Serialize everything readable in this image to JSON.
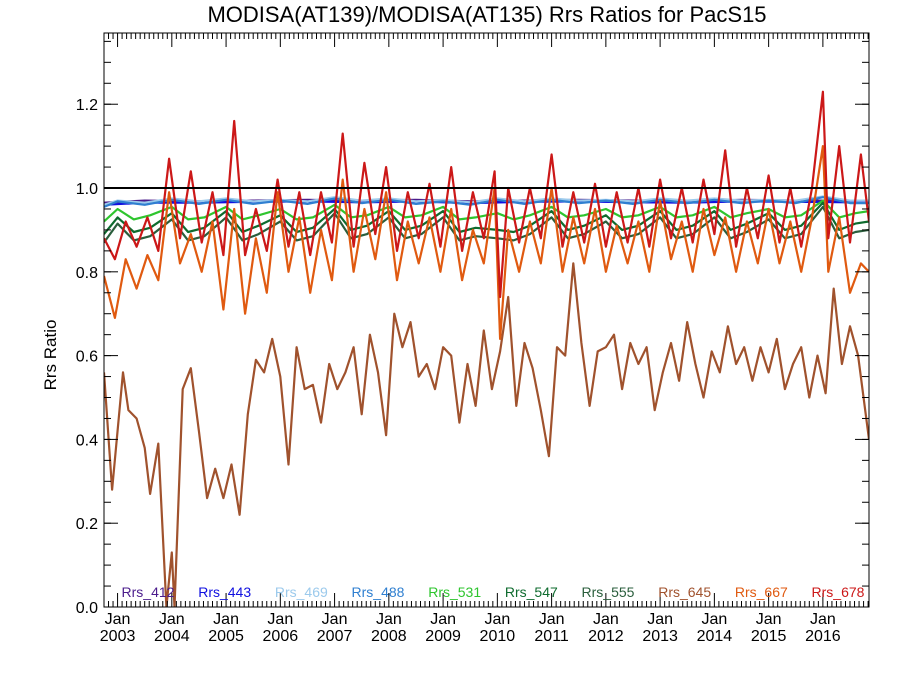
{
  "chart_data": {
    "type": "line",
    "title": "MODISA(AT139)/MODISA(AT135)  Rrs Ratios for PacS15",
    "xlabel": "",
    "ylabel": "Rrs Ratio",
    "xlim": [
      2002.75,
      2016.85
    ],
    "ylim": [
      0.0,
      1.37
    ],
    "yticks": [
      0.0,
      0.2,
      0.4,
      0.6,
      0.8,
      1.0,
      1.2
    ],
    "ytick_labels": [
      "0.0",
      "0.2",
      "0.4",
      "0.6",
      "0.8",
      "1.0",
      "1.2"
    ],
    "xticks": [
      {
        "value": 2003,
        "line1": "Jan",
        "line2": "2003"
      },
      {
        "value": 2004,
        "line1": "Jan",
        "line2": "2004"
      },
      {
        "value": 2005,
        "line1": "Jan",
        "line2": "2005"
      },
      {
        "value": 2006,
        "line1": "Jan",
        "line2": "2006"
      },
      {
        "value": 2007,
        "line1": "Jan",
        "line2": "2007"
      },
      {
        "value": 2008,
        "line1": "Jan",
        "line2": "2008"
      },
      {
        "value": 2009,
        "line1": "Jan",
        "line2": "2009"
      },
      {
        "value": 2010,
        "line1": "Jan",
        "line2": "2010"
      },
      {
        "value": 2011,
        "line1": "Jan",
        "line2": "2011"
      },
      {
        "value": 2012,
        "line1": "Jan",
        "line2": "2012"
      },
      {
        "value": 2013,
        "line1": "Jan",
        "line2": "2013"
      },
      {
        "value": 2014,
        "line1": "Jan",
        "line2": "2014"
      },
      {
        "value": 2015,
        "line1": "Jan",
        "line2": "2015"
      },
      {
        "value": 2016,
        "line1": "Jan",
        "line2": "2016"
      }
    ],
    "reference_line": 1.0,
    "legend_position": "bottom",
    "series": [
      {
        "name": "Rrs_412",
        "color": "#4b1c8c",
        "x": [
          2002.75,
          2003.5,
          2004.5,
          2005.5,
          2006.5,
          2007.5,
          2008.5,
          2009.5,
          2010.5,
          2011.5,
          2012.5,
          2013.5,
          2014.5,
          2015.5,
          2016.5,
          2016.85
        ],
        "y": [
          0.965,
          0.97,
          0.968,
          0.97,
          0.972,
          0.97,
          0.972,
          0.968,
          0.97,
          0.972,
          0.97,
          0.968,
          0.972,
          0.97,
          0.97,
          0.97
        ]
      },
      {
        "name": "Rrs_443",
        "color": "#1010e0",
        "x": [
          2002.75,
          2003.5,
          2004.5,
          2005.5,
          2006.5,
          2007.5,
          2008.5,
          2009.5,
          2010.5,
          2011.5,
          2012.5,
          2013.5,
          2014.5,
          2015.5,
          2016.5,
          2016.85
        ],
        "y": [
          0.96,
          0.965,
          0.965,
          0.967,
          0.968,
          0.966,
          0.968,
          0.964,
          0.967,
          0.968,
          0.966,
          0.965,
          0.968,
          0.967,
          0.966,
          0.966
        ]
      },
      {
        "name": "Rrs_469",
        "color": "#9ccaec",
        "x": [
          2002.75,
          2003.0,
          2003.5,
          2004.0,
          2004.5,
          2005.0,
          2005.5,
          2006.0,
          2006.5,
          2007.0,
          2007.5,
          2008.0,
          2008.5,
          2009.0,
          2009.5,
          2010.0,
          2010.5,
          2011.0,
          2011.5,
          2012.0,
          2012.5,
          2013.0,
          2013.5,
          2014.0,
          2014.5,
          2015.0,
          2015.5,
          2016.0,
          2016.5,
          2016.85
        ],
        "y": [
          0.96,
          0.97,
          0.965,
          0.975,
          0.968,
          0.975,
          0.968,
          0.972,
          0.968,
          0.978,
          0.97,
          0.975,
          0.968,
          0.972,
          0.966,
          0.975,
          0.968,
          0.975,
          0.97,
          0.972,
          0.968,
          0.975,
          0.97,
          0.975,
          0.97,
          0.972,
          0.97,
          0.98,
          0.97,
          0.97
        ]
      },
      {
        "name": "Rrs_488",
        "color": "#2f7fd0",
        "x": [
          2002.75,
          2003.0,
          2003.5,
          2004.0,
          2004.5,
          2005.0,
          2005.5,
          2006.0,
          2006.5,
          2007.0,
          2007.5,
          2008.0,
          2008.5,
          2009.0,
          2009.5,
          2010.0,
          2010.5,
          2011.0,
          2011.5,
          2012.0,
          2012.5,
          2013.0,
          2013.5,
          2014.0,
          2014.5,
          2015.0,
          2015.5,
          2016.0,
          2016.5,
          2016.85
        ],
        "y": [
          0.955,
          0.968,
          0.96,
          0.972,
          0.962,
          0.972,
          0.962,
          0.97,
          0.962,
          0.975,
          0.964,
          0.972,
          0.962,
          0.968,
          0.96,
          0.972,
          0.962,
          0.972,
          0.964,
          0.97,
          0.962,
          0.972,
          0.964,
          0.972,
          0.964,
          0.97,
          0.964,
          0.978,
          0.964,
          0.964
        ]
      },
      {
        "name": "Rrs_531",
        "color": "#2ec52e",
        "x": [
          2002.75,
          2003.0,
          2003.3,
          2003.6,
          2004.0,
          2004.3,
          2004.6,
          2005.0,
          2005.3,
          2005.6,
          2006.0,
          2006.3,
          2006.6,
          2007.0,
          2007.3,
          2007.6,
          2008.0,
          2008.3,
          2008.6,
          2009.0,
          2009.3,
          2009.6,
          2010.0,
          2010.3,
          2010.6,
          2011.0,
          2011.3,
          2011.6,
          2012.0,
          2012.3,
          2012.6,
          2013.0,
          2013.3,
          2013.6,
          2014.0,
          2014.3,
          2014.6,
          2015.0,
          2015.3,
          2015.6,
          2016.0,
          2016.3,
          2016.6,
          2016.85
        ],
        "y": [
          0.92,
          0.95,
          0.925,
          0.935,
          0.955,
          0.925,
          0.93,
          0.955,
          0.925,
          0.935,
          0.95,
          0.925,
          0.93,
          0.96,
          0.93,
          0.935,
          0.955,
          0.93,
          0.935,
          0.955,
          0.925,
          0.93,
          0.94,
          0.925,
          0.935,
          0.955,
          0.93,
          0.935,
          0.95,
          0.93,
          0.935,
          0.955,
          0.93,
          0.935,
          0.955,
          0.93,
          0.94,
          0.95,
          0.93,
          0.935,
          0.97,
          0.93,
          0.94,
          0.945
        ]
      },
      {
        "name": "Rrs_547",
        "color": "#0e6b2e",
        "x": [
          2002.75,
          2003.0,
          2003.3,
          2003.6,
          2004.0,
          2004.3,
          2004.6,
          2005.0,
          2005.3,
          2005.6,
          2006.0,
          2006.3,
          2006.6,
          2007.0,
          2007.3,
          2007.6,
          2008.0,
          2008.3,
          2008.6,
          2009.0,
          2009.3,
          2009.6,
          2010.0,
          2010.3,
          2010.6,
          2011.0,
          2011.3,
          2011.6,
          2012.0,
          2012.3,
          2012.6,
          2013.0,
          2013.3,
          2013.6,
          2014.0,
          2014.3,
          2014.6,
          2015.0,
          2015.3,
          2015.6,
          2016.0,
          2016.3,
          2016.6,
          2016.85
        ],
        "y": [
          0.89,
          0.93,
          0.895,
          0.905,
          0.94,
          0.895,
          0.905,
          0.945,
          0.895,
          0.91,
          0.935,
          0.895,
          0.905,
          0.95,
          0.9,
          0.91,
          0.945,
          0.9,
          0.91,
          0.945,
          0.895,
          0.905,
          0.9,
          0.895,
          0.91,
          0.945,
          0.9,
          0.91,
          0.935,
          0.9,
          0.91,
          0.945,
          0.9,
          0.91,
          0.945,
          0.9,
          0.915,
          0.94,
          0.9,
          0.91,
          0.965,
          0.9,
          0.915,
          0.92
        ]
      },
      {
        "name": "Rrs_555",
        "color": "#2a5e3c",
        "x": [
          2002.75,
          2003.0,
          2003.3,
          2003.6,
          2004.0,
          2004.3,
          2004.6,
          2005.0,
          2005.3,
          2005.6,
          2006.0,
          2006.3,
          2006.6,
          2007.0,
          2007.3,
          2007.6,
          2008.0,
          2008.3,
          2008.6,
          2009.0,
          2009.3,
          2009.6,
          2010.0,
          2010.3,
          2010.6,
          2011.0,
          2011.3,
          2011.6,
          2012.0,
          2012.3,
          2012.6,
          2013.0,
          2013.3,
          2013.6,
          2014.0,
          2014.3,
          2014.6,
          2015.0,
          2015.3,
          2015.6,
          2016.0,
          2016.3,
          2016.6,
          2016.85
        ],
        "y": [
          0.87,
          0.915,
          0.875,
          0.885,
          0.925,
          0.875,
          0.885,
          0.93,
          0.875,
          0.89,
          0.92,
          0.875,
          0.885,
          0.94,
          0.88,
          0.89,
          0.93,
          0.88,
          0.89,
          0.93,
          0.875,
          0.885,
          0.88,
          0.875,
          0.89,
          0.93,
          0.88,
          0.89,
          0.92,
          0.88,
          0.89,
          0.93,
          0.88,
          0.89,
          0.93,
          0.88,
          0.895,
          0.925,
          0.88,
          0.89,
          0.955,
          0.88,
          0.895,
          0.9
        ]
      },
      {
        "name": "Rrs_645",
        "color": "#a0522d",
        "x": [
          2002.75,
          2002.9,
          2003.1,
          2003.2,
          2003.35,
          2003.5,
          2003.6,
          2003.75,
          2003.9,
          2004.0,
          2004.05,
          2004.2,
          2004.35,
          2004.5,
          2004.65,
          2004.8,
          2004.95,
          2005.1,
          2005.25,
          2005.4,
          2005.55,
          2005.7,
          2005.85,
          2006.0,
          2006.15,
          2006.3,
          2006.45,
          2006.6,
          2006.75,
          2006.9,
          2007.05,
          2007.2,
          2007.35,
          2007.5,
          2007.65,
          2007.8,
          2007.95,
          2008.1,
          2008.25,
          2008.4,
          2008.55,
          2008.7,
          2008.85,
          2009.0,
          2009.15,
          2009.3,
          2009.45,
          2009.6,
          2009.75,
          2009.9,
          2010.05,
          2010.2,
          2010.35,
          2010.5,
          2010.65,
          2010.8,
          2010.95,
          2011.1,
          2011.25,
          2011.4,
          2011.55,
          2011.7,
          2011.85,
          2012.0,
          2012.15,
          2012.3,
          2012.45,
          2012.6,
          2012.75,
          2012.9,
          2013.05,
          2013.2,
          2013.35,
          2013.5,
          2013.65,
          2013.8,
          2013.95,
          2014.1,
          2014.25,
          2014.4,
          2014.55,
          2014.7,
          2014.85,
          2015.0,
          2015.15,
          2015.3,
          2015.45,
          2015.6,
          2015.75,
          2015.9,
          2016.05,
          2016.2,
          2016.35,
          2016.5,
          2016.65,
          2016.85
        ],
        "y": [
          0.56,
          0.28,
          0.56,
          0.47,
          0.45,
          0.38,
          0.27,
          0.39,
          0.0,
          0.13,
          0.0,
          0.52,
          0.57,
          0.42,
          0.26,
          0.33,
          0.26,
          0.34,
          0.22,
          0.46,
          0.59,
          0.56,
          0.64,
          0.55,
          0.34,
          0.62,
          0.52,
          0.53,
          0.44,
          0.58,
          0.52,
          0.56,
          0.62,
          0.46,
          0.65,
          0.56,
          0.41,
          0.7,
          0.62,
          0.68,
          0.55,
          0.58,
          0.52,
          0.62,
          0.6,
          0.44,
          0.58,
          0.48,
          0.66,
          0.52,
          0.61,
          0.74,
          0.48,
          0.63,
          0.57,
          0.47,
          0.36,
          0.62,
          0.6,
          0.82,
          0.63,
          0.48,
          0.61,
          0.62,
          0.65,
          0.52,
          0.63,
          0.58,
          0.62,
          0.47,
          0.56,
          0.63,
          0.54,
          0.68,
          0.58,
          0.5,
          0.61,
          0.56,
          0.67,
          0.58,
          0.62,
          0.54,
          0.62,
          0.56,
          0.64,
          0.52,
          0.58,
          0.62,
          0.5,
          0.6,
          0.51,
          0.76,
          0.58,
          0.67,
          0.6,
          0.4
        ]
      },
      {
        "name": "Rrs_667",
        "color": "#e05a10",
        "x": [
          2002.75,
          2002.95,
          2003.15,
          2003.35,
          2003.55,
          2003.75,
          2003.95,
          2004.15,
          2004.35,
          2004.55,
          2004.75,
          2004.95,
          2005.15,
          2005.35,
          2005.55,
          2005.75,
          2005.95,
          2006.15,
          2006.35,
          2006.55,
          2006.75,
          2006.95,
          2007.15,
          2007.35,
          2007.55,
          2007.75,
          2007.95,
          2008.15,
          2008.35,
          2008.55,
          2008.75,
          2008.95,
          2009.15,
          2009.35,
          2009.55,
          2009.75,
          2009.95,
          2010.05,
          2010.2,
          2010.4,
          2010.6,
          2010.8,
          2011.0,
          2011.2,
          2011.4,
          2011.6,
          2011.8,
          2012.0,
          2012.2,
          2012.4,
          2012.6,
          2012.8,
          2013.0,
          2013.2,
          2013.4,
          2013.6,
          2013.8,
          2014.0,
          2014.2,
          2014.4,
          2014.6,
          2014.8,
          2015.0,
          2015.2,
          2015.4,
          2015.6,
          2015.8,
          2016.0,
          2016.1,
          2016.3,
          2016.5,
          2016.7,
          2016.85
        ],
        "y": [
          0.79,
          0.69,
          0.83,
          0.76,
          0.84,
          0.78,
          0.99,
          0.82,
          0.89,
          0.8,
          0.92,
          0.71,
          0.95,
          0.7,
          0.88,
          0.75,
          0.99,
          0.8,
          0.93,
          0.75,
          0.9,
          0.78,
          1.02,
          0.8,
          0.95,
          0.83,
          0.99,
          0.78,
          0.92,
          0.82,
          0.93,
          0.8,
          0.95,
          0.78,
          0.9,
          0.82,
          1.0,
          0.64,
          0.9,
          0.8,
          0.92,
          0.82,
          1.0,
          0.8,
          0.93,
          0.82,
          0.95,
          0.8,
          0.91,
          0.82,
          0.92,
          0.8,
          0.97,
          0.83,
          0.92,
          0.8,
          0.95,
          0.84,
          0.93,
          0.8,
          0.92,
          0.82,
          0.95,
          0.82,
          0.92,
          0.8,
          0.93,
          1.1,
          0.8,
          0.93,
          0.75,
          0.82,
          0.8
        ]
      },
      {
        "name": "Rrs_678",
        "color": "#cc1818",
        "x": [
          2002.75,
          2002.95,
          2003.15,
          2003.35,
          2003.55,
          2003.75,
          2003.95,
          2004.15,
          2004.35,
          2004.55,
          2004.75,
          2004.95,
          2005.15,
          2005.35,
          2005.55,
          2005.75,
          2005.95,
          2006.15,
          2006.35,
          2006.55,
          2006.75,
          2006.95,
          2007.15,
          2007.35,
          2007.55,
          2007.75,
          2007.95,
          2008.15,
          2008.35,
          2008.55,
          2008.75,
          2008.95,
          2009.15,
          2009.35,
          2009.55,
          2009.75,
          2009.95,
          2010.05,
          2010.2,
          2010.4,
          2010.6,
          2010.8,
          2011.0,
          2011.2,
          2011.4,
          2011.6,
          2011.8,
          2012.0,
          2012.2,
          2012.4,
          2012.6,
          2012.8,
          2013.0,
          2013.2,
          2013.4,
          2013.6,
          2013.8,
          2014.0,
          2014.2,
          2014.4,
          2014.6,
          2014.8,
          2015.0,
          2015.2,
          2015.4,
          2015.6,
          2015.8,
          2016.0,
          2016.1,
          2016.3,
          2016.5,
          2016.7,
          2016.85
        ],
        "y": [
          0.88,
          0.83,
          0.92,
          0.86,
          0.93,
          0.85,
          1.07,
          0.88,
          1.04,
          0.87,
          0.99,
          0.84,
          1.16,
          0.84,
          0.95,
          0.85,
          1.02,
          0.86,
          0.99,
          0.84,
          0.99,
          0.87,
          1.13,
          0.86,
          1.06,
          0.89,
          1.05,
          0.85,
          0.99,
          0.88,
          1.01,
          0.86,
          1.05,
          0.85,
          0.99,
          0.88,
          1.04,
          0.74,
          1.0,
          0.87,
          1.0,
          0.88,
          1.08,
          0.86,
          0.99,
          0.87,
          1.01,
          0.86,
          0.99,
          0.87,
          1.0,
          0.86,
          1.02,
          0.88,
          1.0,
          0.87,
          1.02,
          0.89,
          1.09,
          0.86,
          1.0,
          0.88,
          1.03,
          0.87,
          1.0,
          0.86,
          1.0,
          1.23,
          0.88,
          1.1,
          0.87,
          1.08,
          0.92
        ]
      }
    ]
  }
}
